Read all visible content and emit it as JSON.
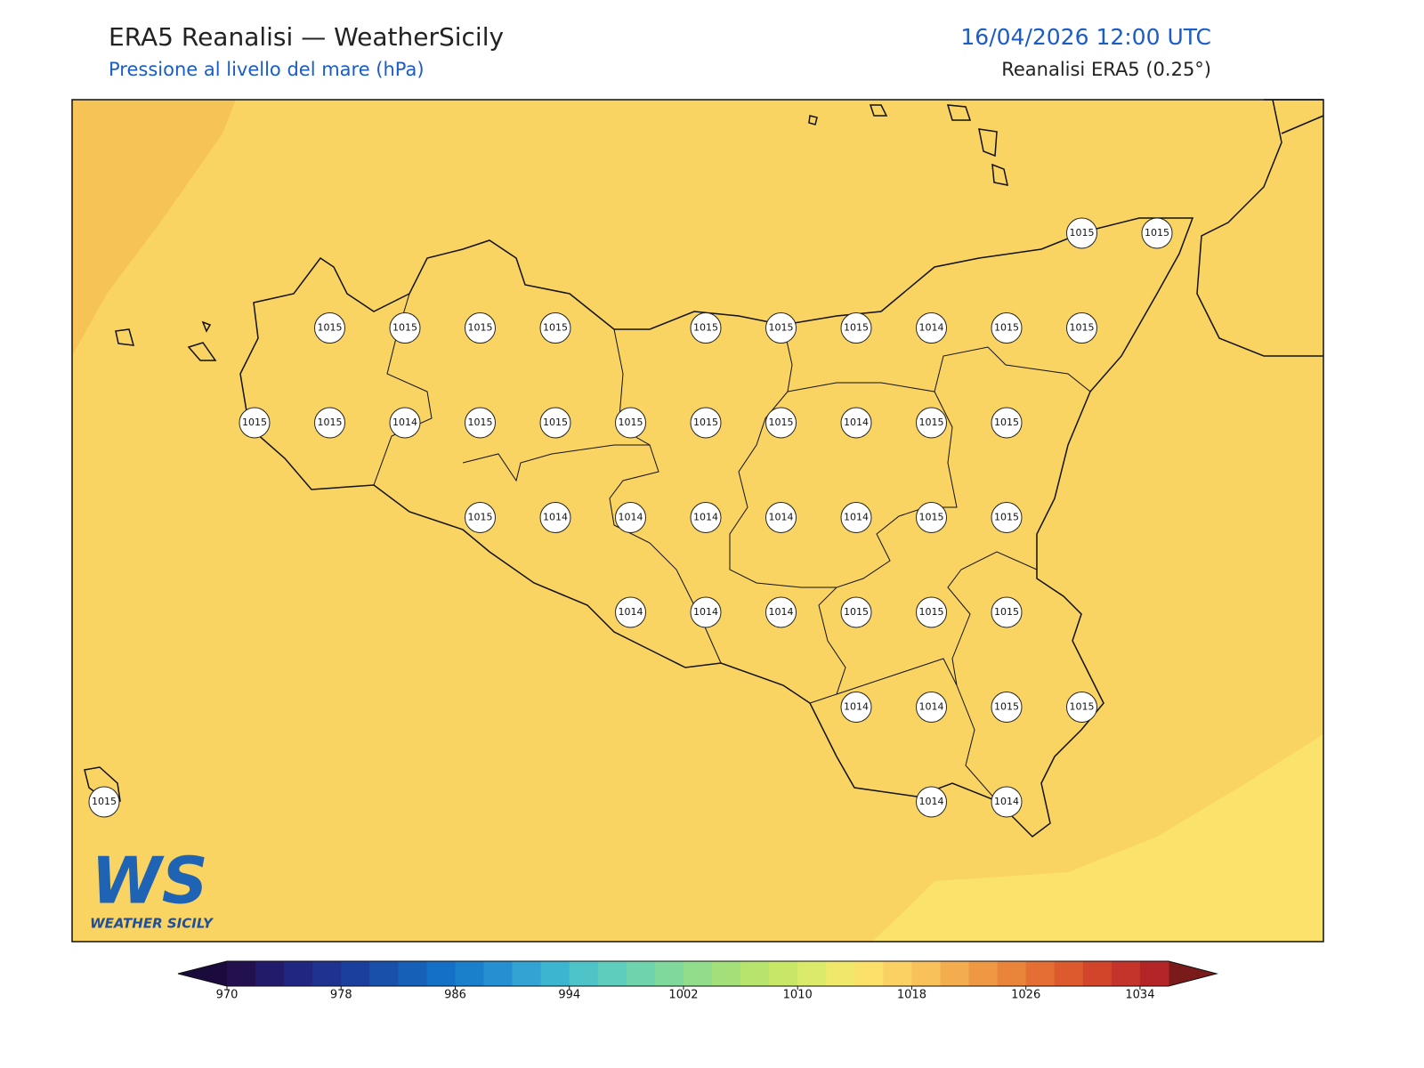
{
  "header": {
    "title": "ERA5 Reanalisi — WeatherSicily",
    "subtitle": "Pressione al livello del mare (hPa)",
    "datetime": "16/04/2026 12:00 UTC",
    "source": "Reanalisi ERA5 (0.25°)"
  },
  "stations": [
    [
      null,
      null,
      null,
      null,
      null,
      null,
      null,
      null,
      null,
      null,
      null,
      null,
      null,
      1015,
      1015
    ],
    [
      null,
      null,
      null,
      1015,
      1015,
      1015,
      1015,
      null,
      1015,
      1015,
      1015,
      1014,
      1015,
      1015,
      null
    ],
    [
      null,
      null,
      1015,
      1015,
      1014,
      1015,
      1015,
      1015,
      1015,
      1015,
      1014,
      1015,
      1015,
      null,
      null
    ],
    [
      null,
      null,
      null,
      null,
      null,
      1015,
      1014,
      1014,
      1014,
      1014,
      1014,
      1015,
      1015,
      null,
      null
    ],
    [
      null,
      null,
      null,
      null,
      null,
      null,
      null,
      1014,
      1014,
      1014,
      1015,
      1015,
      1015,
      null,
      null
    ],
    [
      null,
      null,
      null,
      null,
      null,
      null,
      null,
      null,
      null,
      null,
      1014,
      1014,
      1015,
      1015,
      null
    ],
    [
      1015,
      null,
      null,
      null,
      null,
      null,
      null,
      null,
      null,
      null,
      null,
      1014,
      1014,
      null,
      null
    ]
  ],
  "colorbar": {
    "range": [
      970,
      1036
    ],
    "ticks": [
      970,
      978,
      986,
      994,
      1002,
      1010,
      1018,
      1026,
      1034
    ],
    "colors": [
      "#23104f",
      "#221b6b",
      "#212780",
      "#1f3290",
      "#1b3f9d",
      "#1850aa",
      "#1660b8",
      "#1470c4",
      "#1a80cc",
      "#2490d2",
      "#33a3d4",
      "#3cb6d0",
      "#4ec4c8",
      "#5ecdbd",
      "#6fd3ad",
      "#80d99c",
      "#91dd8b",
      "#a3e07a",
      "#b6e46c",
      "#c9e766",
      "#dcea6b",
      "#efe86b",
      "#fbe06a",
      "#fbd163",
      "#f8c15a",
      "#f3ac4e",
      "#ee9844",
      "#e9843b",
      "#e46e33",
      "#dc5a2e",
      "#d2452b",
      "#c4342a",
      "#b42528"
    ],
    "under": "#1a0b3c",
    "over": "#7a1a1a"
  },
  "logo": {
    "mark": "WS",
    "text": "WEATHER SICILY"
  }
}
